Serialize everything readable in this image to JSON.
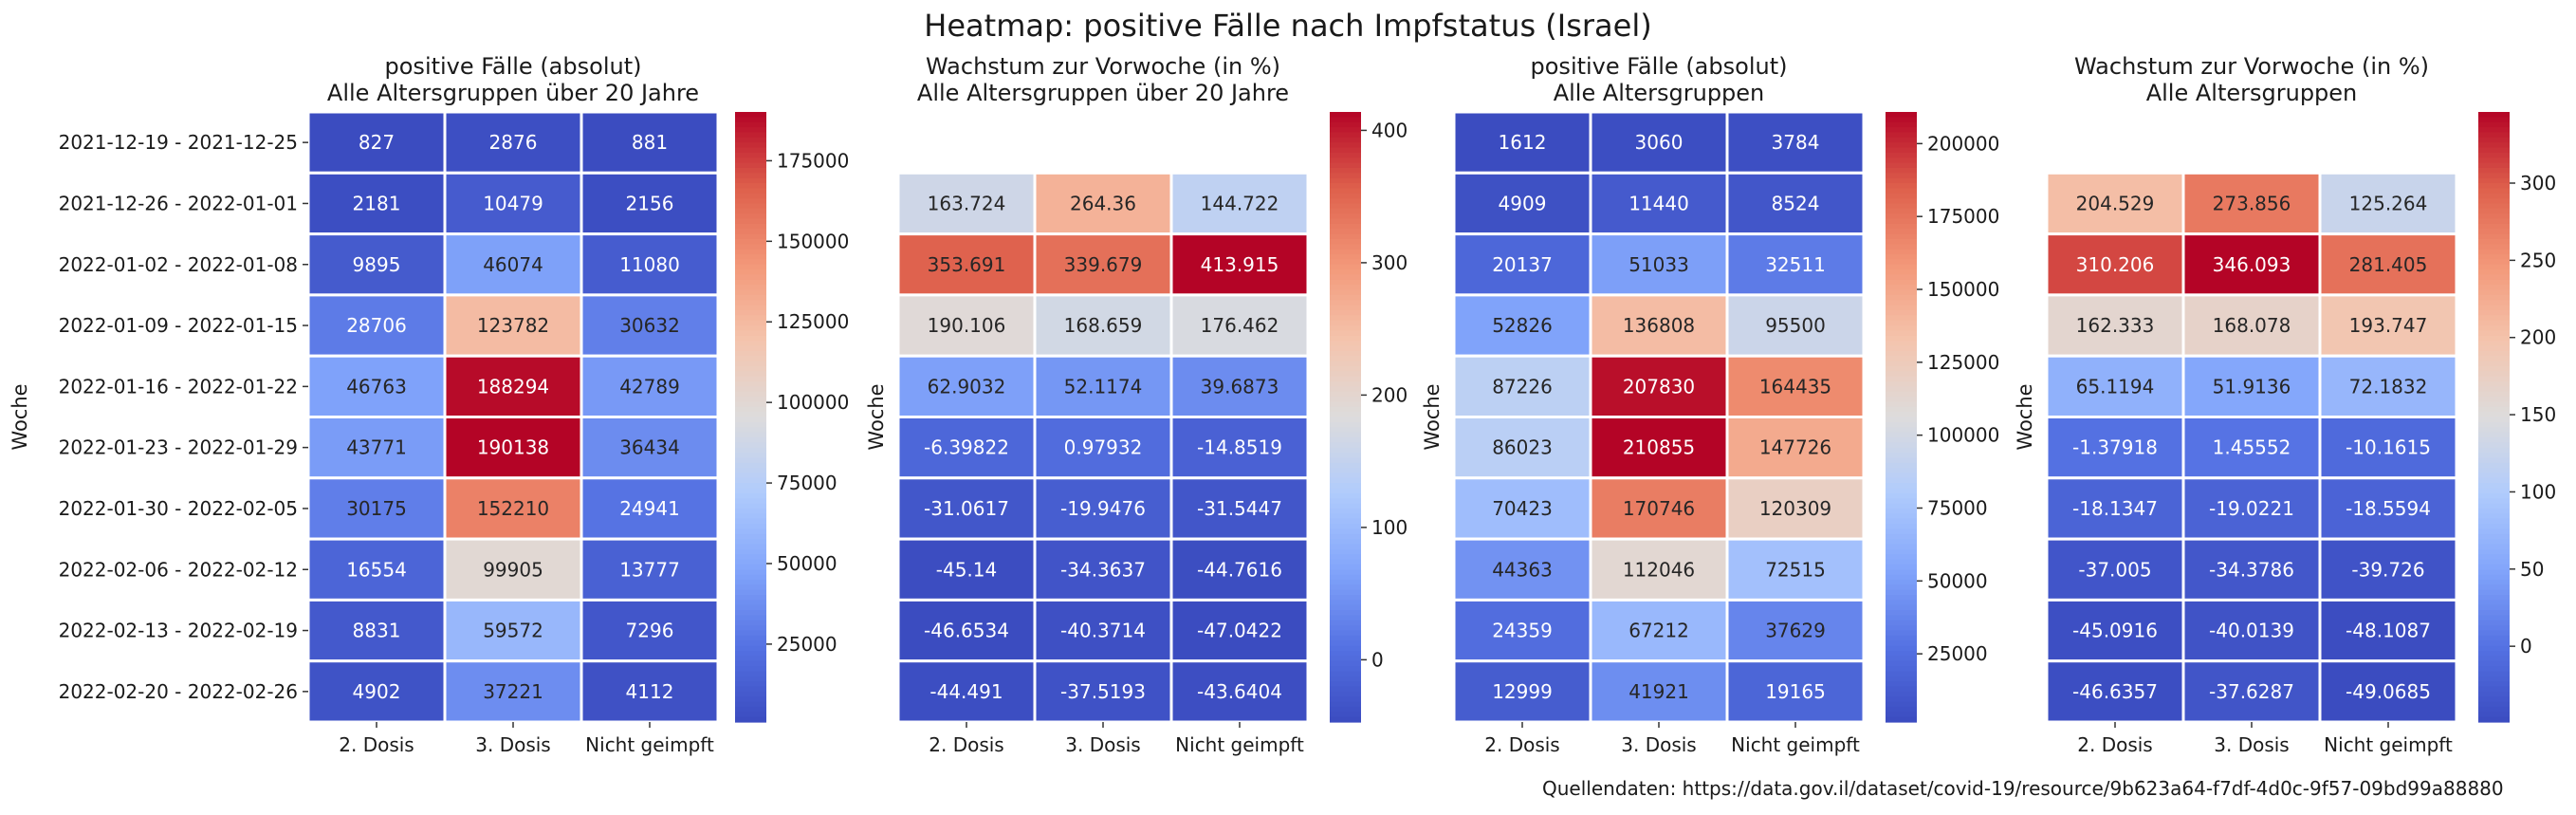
{
  "figure": {
    "title": "Heatmap: positive Fälle nach Impfstatus (Israel)",
    "source": "Quellendaten: https://data.gov.il/dataset/covid-19/resource/9b623a64-f7df-4d0c-9f57-09bd99a88880"
  },
  "chart_data": [
    {
      "type": "heatmap",
      "title": "positive Fälle (absolut)",
      "subtitle": "Alle Altersgruppen über 20 Jahre",
      "ylabel": "Woche",
      "xlabel": "",
      "x_categories": [
        "2. Dosis",
        "3. Dosis",
        "Nicht geimpft"
      ],
      "y_categories": [
        "2021-12-19 - 2021-12-25",
        "2021-12-26 - 2022-01-01",
        "2022-01-02 - 2022-01-08",
        "2022-01-09 - 2022-01-15",
        "2022-01-16 - 2022-01-22",
        "2022-01-23 - 2022-01-29",
        "2022-01-30 - 2022-02-05",
        "2022-02-06 - 2022-02-12",
        "2022-02-13 - 2022-02-19",
        "2022-02-20 - 2022-02-26"
      ],
      "y_tick_labels_visible": true,
      "values": [
        [
          827,
          2876,
          881
        ],
        [
          2181,
          10479,
          2156
        ],
        [
          9895,
          46074,
          11080
        ],
        [
          28706,
          123782,
          30632
        ],
        [
          46763,
          188294,
          42789
        ],
        [
          43771,
          190138,
          36434
        ],
        [
          30175,
          152210,
          24941
        ],
        [
          16554,
          99905,
          13777
        ],
        [
          8831,
          59572,
          7296
        ],
        [
          4902,
          37221,
          4112
        ]
      ],
      "colormap": "coolwarm",
      "vmin": 827,
      "vmax": 190138,
      "colorbar_ticks": [
        25000,
        50000,
        75000,
        100000,
        125000,
        150000,
        175000
      ],
      "colorbar_tick_labels": [
        "25000",
        "50000",
        "75000",
        "100000",
        "125000",
        "150000",
        "175000"
      ]
    },
    {
      "type": "heatmap",
      "title": "Wachstum zur Vorwoche (in %)",
      "subtitle": "Alle Altersgruppen über 20 Jahre",
      "ylabel": "Woche",
      "xlabel": "",
      "x_categories": [
        "2. Dosis",
        "3. Dosis",
        "Nicht geimpft"
      ],
      "y_categories": [
        "2021-12-19 - 2021-12-25",
        "2021-12-26 - 2022-01-01",
        "2022-01-02 - 2022-01-08",
        "2022-01-09 - 2022-01-15",
        "2022-01-16 - 2022-01-22",
        "2022-01-23 - 2022-01-29",
        "2022-01-30 - 2022-02-05",
        "2022-02-06 - 2022-02-12",
        "2022-02-13 - 2022-02-19",
        "2022-02-20 - 2022-02-26"
      ],
      "y_tick_labels_visible": false,
      "values": [
        [
          null,
          null,
          null
        ],
        [
          163.724,
          264.36,
          144.722
        ],
        [
          353.691,
          339.679,
          413.915
        ],
        [
          190.106,
          168.659,
          176.462
        ],
        [
          62.9032,
          52.1174,
          39.6873
        ],
        [
          -6.39822,
          0.97932,
          -14.8519
        ],
        [
          -31.0617,
          -19.9476,
          -31.5447
        ],
        [
          -45.14,
          -34.3637,
          -44.7616
        ],
        [
          -46.6534,
          -40.3714,
          -47.0422
        ],
        [
          -44.491,
          -37.5193,
          -43.6404
        ]
      ],
      "colormap": "coolwarm",
      "vmin": -47.0422,
      "vmax": 413.915,
      "colorbar_ticks": [
        0,
        100,
        200,
        300,
        400
      ],
      "colorbar_tick_labels": [
        "0",
        "100",
        "200",
        "300",
        "400"
      ]
    },
    {
      "type": "heatmap",
      "title": "positive Fälle (absolut)",
      "subtitle": "Alle Altersgruppen",
      "ylabel": "Woche",
      "xlabel": "",
      "x_categories": [
        "2. Dosis",
        "3. Dosis",
        "Nicht geimpft"
      ],
      "y_categories": [
        "2021-12-19 - 2021-12-25",
        "2021-12-26 - 2022-01-01",
        "2022-01-02 - 2022-01-08",
        "2022-01-09 - 2022-01-15",
        "2022-01-16 - 2022-01-22",
        "2022-01-23 - 2022-01-29",
        "2022-01-30 - 2022-02-05",
        "2022-02-06 - 2022-02-12",
        "2022-02-13 - 2022-02-19",
        "2022-02-20 - 2022-02-26"
      ],
      "y_tick_labels_visible": false,
      "values": [
        [
          1612,
          3060,
          3784
        ],
        [
          4909,
          11440,
          8524
        ],
        [
          20137,
          51033,
          32511
        ],
        [
          52826,
          136808,
          95500
        ],
        [
          87226,
          207830,
          164435
        ],
        [
          86023,
          210855,
          147726
        ],
        [
          70423,
          170746,
          120309
        ],
        [
          44363,
          112046,
          72515
        ],
        [
          24359,
          67212,
          37629
        ],
        [
          12999,
          41921,
          19165
        ]
      ],
      "colormap": "coolwarm",
      "vmin": 1612,
      "vmax": 210855,
      "colorbar_ticks": [
        25000,
        50000,
        75000,
        100000,
        125000,
        150000,
        175000,
        200000
      ],
      "colorbar_tick_labels": [
        "25000",
        "50000",
        "75000",
        "100000",
        "125000",
        "150000",
        "175000",
        "200000"
      ]
    },
    {
      "type": "heatmap",
      "title": "Wachstum zur Vorwoche (in %)",
      "subtitle": "Alle Altersgruppen",
      "ylabel": "Woche",
      "xlabel": "",
      "x_categories": [
        "2. Dosis",
        "3. Dosis",
        "Nicht geimpft"
      ],
      "y_categories": [
        "2021-12-19 - 2021-12-25",
        "2021-12-26 - 2022-01-01",
        "2022-01-02 - 2022-01-08",
        "2022-01-09 - 2022-01-15",
        "2022-01-16 - 2022-01-22",
        "2022-01-23 - 2022-01-29",
        "2022-01-30 - 2022-02-05",
        "2022-02-06 - 2022-02-12",
        "2022-02-13 - 2022-02-19",
        "2022-02-20 - 2022-02-26"
      ],
      "y_tick_labels_visible": false,
      "values": [
        [
          null,
          null,
          null
        ],
        [
          204.529,
          273.856,
          125.264
        ],
        [
          310.206,
          346.093,
          281.405
        ],
        [
          162.333,
          168.078,
          193.747
        ],
        [
          65.1194,
          51.9136,
          72.1832
        ],
        [
          -1.37918,
          1.45552,
          -10.1615
        ],
        [
          -18.1347,
          -19.0221,
          -18.5594
        ],
        [
          -37.005,
          -34.3786,
          -39.726
        ],
        [
          -45.0916,
          -40.0139,
          -48.1087
        ],
        [
          -46.6357,
          -37.6287,
          -49.0685
        ]
      ],
      "colormap": "coolwarm",
      "vmin": -49.0685,
      "vmax": 346.093,
      "colorbar_ticks": [
        0,
        50,
        100,
        150,
        200,
        250,
        300
      ],
      "colorbar_tick_labels": [
        "0",
        "50",
        "100",
        "150",
        "200",
        "250",
        "300"
      ]
    }
  ]
}
